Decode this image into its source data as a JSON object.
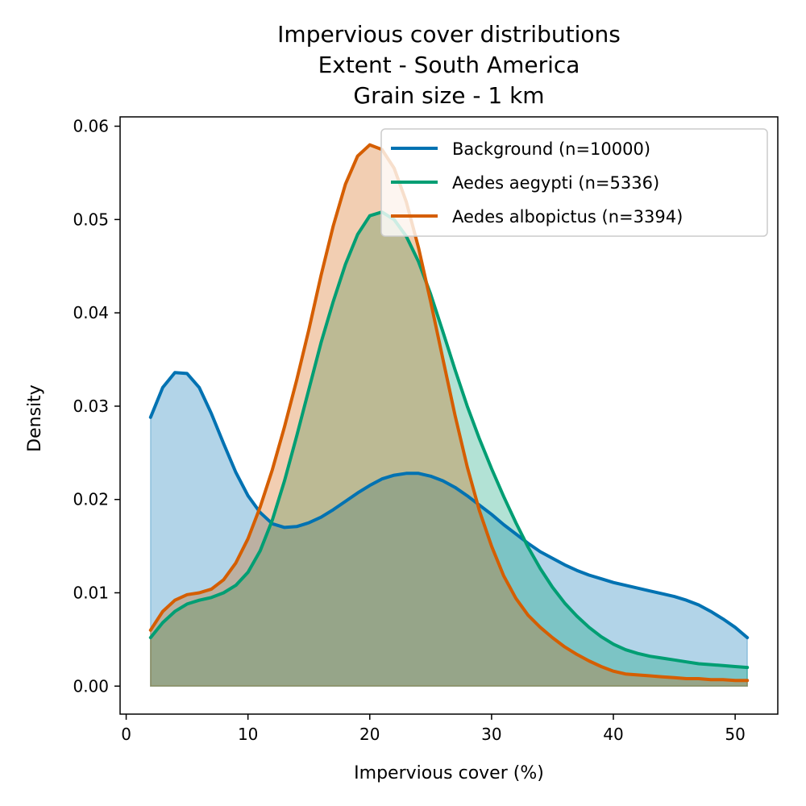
{
  "chart_data": {
    "type": "area",
    "title_lines": [
      "Impervious cover distributions",
      "Extent - South America",
      "Grain size - 1 km"
    ],
    "xlabel": "Impervious cover (%)",
    "ylabel": "Density",
    "xlim": [
      -0.5,
      53.5
    ],
    "ylim": [
      -0.003,
      0.061
    ],
    "xticks": [
      0,
      10,
      20,
      30,
      40,
      50
    ],
    "yticks": [
      0.0,
      0.01,
      0.02,
      0.03,
      0.04,
      0.05,
      0.06
    ],
    "xtick_labels": [
      "0",
      "10",
      "20",
      "30",
      "40",
      "50"
    ],
    "ytick_labels": [
      "0.00",
      "0.01",
      "0.02",
      "0.03",
      "0.04",
      "0.05",
      "0.06"
    ],
    "legend_position": "upper right",
    "x": [
      2,
      3,
      4,
      5,
      6,
      7,
      8,
      9,
      10,
      11,
      12,
      13,
      14,
      15,
      16,
      17,
      18,
      19,
      20,
      21,
      22,
      23,
      24,
      25,
      26,
      27,
      28,
      29,
      30,
      31,
      32,
      33,
      34,
      35,
      36,
      37,
      38,
      39,
      40,
      41,
      42,
      43,
      44,
      45,
      46,
      47,
      48,
      49,
      50,
      51
    ],
    "series": [
      {
        "name": "Background (n=10000)",
        "color": "#0072b2",
        "values": [
          0.0288,
          0.032,
          0.0336,
          0.0335,
          0.032,
          0.0292,
          0.026,
          0.0229,
          0.0204,
          0.0186,
          0.0174,
          0.017,
          0.0171,
          0.0175,
          0.0181,
          0.0189,
          0.0198,
          0.0207,
          0.0215,
          0.0222,
          0.0226,
          0.0228,
          0.0228,
          0.0225,
          0.022,
          0.0213,
          0.0204,
          0.0194,
          0.0184,
          0.0173,
          0.0163,
          0.0153,
          0.0144,
          0.0137,
          0.013,
          0.0124,
          0.0119,
          0.0115,
          0.0111,
          0.0108,
          0.0105,
          0.0102,
          0.0099,
          0.0096,
          0.0092,
          0.0087,
          0.008,
          0.0072,
          0.0063,
          0.0052
        ]
      },
      {
        "name": "Aedes aegypti (n=5336)",
        "color": "#009e73",
        "values": [
          0.0052,
          0.0068,
          0.008,
          0.0088,
          0.0092,
          0.0095,
          0.01,
          0.0108,
          0.0122,
          0.0145,
          0.0178,
          0.022,
          0.0268,
          0.0318,
          0.0368,
          0.0412,
          0.0452,
          0.0484,
          0.0504,
          0.0508,
          0.05,
          0.0482,
          0.0455,
          0.042,
          0.038,
          0.0339,
          0.03,
          0.0265,
          0.0233,
          0.0203,
          0.0175,
          0.0149,
          0.0126,
          0.0106,
          0.0089,
          0.0075,
          0.0063,
          0.0053,
          0.0045,
          0.0039,
          0.0035,
          0.0032,
          0.003,
          0.0028,
          0.0026,
          0.0024,
          0.0023,
          0.0022,
          0.0021,
          0.002
        ]
      },
      {
        "name": "Aedes albopictus (n=3394)",
        "color": "#d55e00",
        "values": [
          0.006,
          0.008,
          0.0092,
          0.0098,
          0.01,
          0.0104,
          0.0114,
          0.0132,
          0.0158,
          0.0192,
          0.0232,
          0.0278,
          0.0328,
          0.0382,
          0.044,
          0.0493,
          0.0538,
          0.0568,
          0.058,
          0.0575,
          0.0555,
          0.0519,
          0.047,
          0.0412,
          0.0351,
          0.029,
          0.0235,
          0.0188,
          0.015,
          0.0118,
          0.0094,
          0.0076,
          0.0063,
          0.0052,
          0.0042,
          0.0034,
          0.0027,
          0.0021,
          0.0016,
          0.0013,
          0.0012,
          0.0011,
          0.001,
          0.0009,
          0.0008,
          0.0008,
          0.0007,
          0.0007,
          0.0006,
          0.0006
        ]
      }
    ]
  }
}
